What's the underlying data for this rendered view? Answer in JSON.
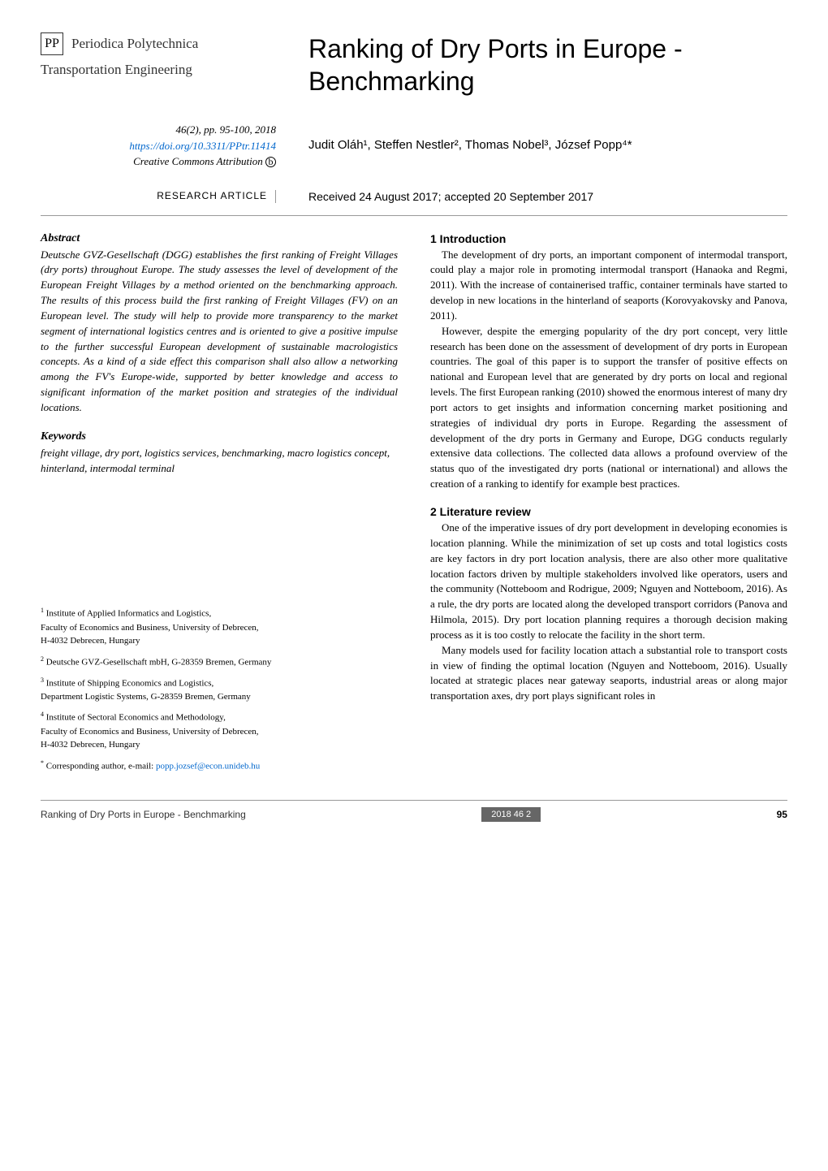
{
  "journal": {
    "logo_text": "PP",
    "name": "Periodica Polytechnica",
    "subtitle": "Transportation Engineering"
  },
  "paper": {
    "title": "Ranking of Dry Ports in Europe - Benchmarking",
    "citation": "46(2), pp. 95-100, 2018",
    "doi_url": "https://doi.org/10.3311/PPtr.11414",
    "license": "Creative Commons Attribution",
    "authors_html": "Judit Oláh¹, Steffen Nestler², Thomas Nobel³, József Popp⁴*",
    "article_type": "RESEARCH ARTICLE",
    "received": "Received 24 August 2017; accepted 20 September 2017"
  },
  "abstract": {
    "heading": "Abstract",
    "text": "Deutsche GVZ-Gesellschaft (DGG) establishes the first ranking of Freight Villages (dry ports) throughout Europe. The study assesses the level of development of the European Freight Villages by a method oriented on the benchmarking approach. The results of this process build the first ranking of Freight Villages (FV) on an European level. The study will help to provide more transparency to the market segment of international logistics centres and is oriented to give a positive impulse to the further successful European development of sustainable macrologistics concepts. As a kind of a side effect this comparison shall also allow a networking among the FV's Europe-wide, supported by better knowledge and access to significant information of the market position and strategies of the individual locations."
  },
  "keywords": {
    "heading": "Keywords",
    "text": "freight village, dry port, logistics services, benchmarking, macro logistics concept, hinterland, intermodal terminal"
  },
  "sections": {
    "intro": {
      "heading": "1 Introduction",
      "p1": "The development of dry ports, an important component of intermodal transport, could play a major role in promoting intermodal transport (Hanaoka and Regmi, 2011). With the increase of containerised traffic, container terminals have started to develop in new locations in the hinterland of seaports (Korovyakovsky and Panova, 2011).",
      "p2": "However, despite the emerging popularity of the dry port concept, very little research has been done on the assessment of development of dry ports in European countries. The goal of this paper is to support the transfer of positive effects on national and European level that are generated by dry ports on local and regional levels. The first European ranking (2010) showed the enormous interest of many dry port actors to get insights and information concerning market positioning and strategies of individual dry ports in Europe. Regarding the assessment of development of the dry ports in Germany and Europe, DGG conducts regularly extensive data collections. The collected data allows a profound overview of the status quo of the investigated dry ports (national or international) and allows the creation of a ranking to identify for example best practices."
    },
    "litreview": {
      "heading": "2 Literature review",
      "p1": "One of the imperative issues of dry port development in developing economies is location planning. While the minimization of set up costs and total logistics costs are key factors in dry port location analysis, there are also other more qualitative location factors driven by multiple stakeholders involved like operators, users and the community (Notteboom and Rodrigue, 2009; Nguyen and Notteboom, 2016). As a rule, the dry ports are located along the developed transport corridors (Panova and Hilmola, 2015). Dry port location planning requires a thorough decision making process as it is too costly to relocate the facility in the short term.",
      "p2": "Many models used for facility location attach a substantial role to transport costs in view of finding the optimal location (Nguyen and Notteboom, 2016). Usually located at strategic places near gateway seaports, industrial areas or along major transportation axes, dry port plays significant roles in"
    }
  },
  "affiliations": {
    "a1": {
      "sup": "1",
      "line1": "Institute of Applied Informatics and Logistics,",
      "line2": "Faculty of Economics and Business, University of Debrecen,",
      "line3": "H-4032 Debrecen, Hungary"
    },
    "a2": {
      "sup": "2",
      "line1": "Deutsche GVZ-Gesellschaft mbH, G-28359 Bremen, Germany"
    },
    "a3": {
      "sup": "3",
      "line1": "Institute of Shipping Economics and Logistics,",
      "line2": "Department Logistic Systems, G-28359 Bremen, Germany"
    },
    "a4": {
      "sup": "4",
      "line1": "Institute of Sectoral Economics and Methodology,",
      "line2": "Faculty of Economics and Business, University of Debrecen,",
      "line3": "H-4032 Debrecen, Hungary"
    },
    "corresponding": {
      "sup": "*",
      "label": "Corresponding author, e-mail: ",
      "email": "popp.jozsef@econ.unideb.hu"
    }
  },
  "footer": {
    "left": "Ranking of Dry Ports in Europe - Benchmarking",
    "center": "2018 46 2",
    "page": "95"
  },
  "colors": {
    "text": "#000000",
    "link": "#0066cc",
    "divider": "#999999",
    "footer_badge_bg": "#666666",
    "footer_badge_text": "#ffffff",
    "background": "#ffffff"
  },
  "typography": {
    "body_font": "Georgia, Times New Roman, serif",
    "heading_font": "Arial, Helvetica, sans-serif",
    "title_fontsize": 32,
    "body_fontsize": 13,
    "affil_fontsize": 11
  }
}
